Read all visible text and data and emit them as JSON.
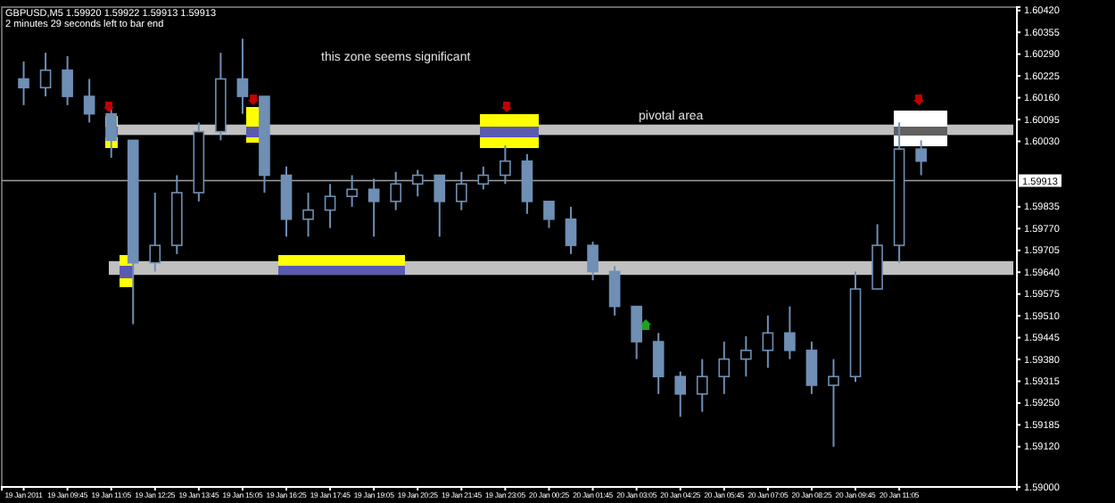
{
  "chart_data": {
    "type": "candlestick",
    "title": "GBPUSD,M5  1.59920 1.59922 1.59913 1.59913",
    "subtitle": "2 minutes 29 seconds left to bar end",
    "x": [
      "2011-01-19T08:25",
      "2011-01-19T09:05",
      "2011-01-19T09:45",
      "2011-01-19T10:25",
      "2011-01-19T11:05",
      "2011-01-19T11:45",
      "2011-01-19T12:25",
      "2011-01-19T13:05",
      "2011-01-19T13:45",
      "2011-01-19T14:25",
      "2011-01-19T15:05",
      "2011-01-19T15:45",
      "2011-01-19T16:25",
      "2011-01-19T17:05",
      "2011-01-19T17:45",
      "2011-01-19T18:25",
      "2011-01-19T19:05",
      "2011-01-19T19:45",
      "2011-01-19T20:25",
      "2011-01-19T21:05",
      "2011-01-19T21:45",
      "2011-01-19T22:25",
      "2011-01-19T23:05",
      "2011-01-19T23:45",
      "2011-01-20T00:25",
      "2011-01-20T01:05",
      "2011-01-20T01:45",
      "2011-01-20T02:25",
      "2011-01-20T03:05",
      "2011-01-20T03:45",
      "2011-01-20T04:25",
      "2011-01-20T05:05",
      "2011-01-20T05:45",
      "2011-01-20T06:25",
      "2011-01-20T07:05",
      "2011-01-20T07:45",
      "2011-01-20T08:25",
      "2011-01-20T09:05",
      "2011-01-20T09:45",
      "2011-01-20T10:25",
      "2011-01-20T11:05",
      "2011-01-20T11:45"
    ],
    "ohlc": [
      [
        1.60216,
        1.60268,
        1.60138,
        1.6019
      ],
      [
        1.6019,
        1.60294,
        1.60164,
        1.60242
      ],
      [
        1.60242,
        1.60284,
        1.60138,
        1.60164
      ],
      [
        1.60164,
        1.60216,
        1.60086,
        1.60112
      ],
      [
        1.60112,
        1.60138,
        1.59981,
        1.60033
      ],
      [
        1.60033,
        1.60033,
        1.59485,
        1.59668
      ],
      [
        1.59668,
        1.59877,
        1.59642,
        1.5972
      ],
      [
        1.5972,
        1.59929,
        1.59694,
        1.59877
      ],
      [
        1.59877,
        1.60086,
        1.59851,
        1.60059
      ],
      [
        1.60059,
        1.60294,
        1.60033,
        1.60216
      ],
      [
        1.60216,
        1.60336,
        1.60112,
        1.60164
      ],
      [
        1.60164,
        1.60164,
        1.59877,
        1.59929
      ],
      [
        1.59929,
        1.59955,
        1.59746,
        1.59798
      ],
      [
        1.59798,
        1.59877,
        1.59746,
        1.59825
      ],
      [
        1.59825,
        1.59903,
        1.59772,
        1.59866
      ],
      [
        1.59866,
        1.59929,
        1.59835,
        1.59887
      ],
      [
        1.59887,
        1.59919,
        1.59746,
        1.59851
      ],
      [
        1.59851,
        1.59939,
        1.59825,
        1.59903
      ],
      [
        1.59903,
        1.59945,
        1.59866,
        1.59929
      ],
      [
        1.59929,
        1.59929,
        1.59746,
        1.59851
      ],
      [
        1.59851,
        1.59939,
        1.59825,
        1.59903
      ],
      [
        1.59903,
        1.59955,
        1.59887,
        1.59929
      ],
      [
        1.59929,
        1.60018,
        1.59903,
        1.59971
      ],
      [
        1.59971,
        1.59992,
        1.59814,
        1.59851
      ],
      [
        1.59851,
        1.59851,
        1.59772,
        1.59798
      ],
      [
        1.59798,
        1.59835,
        1.59694,
        1.5972
      ],
      [
        1.5972,
        1.59731,
        1.59616,
        1.59642
      ],
      [
        1.59642,
        1.59658,
        1.59511,
        1.59538
      ],
      [
        1.59538,
        1.59538,
        1.59381,
        1.59433
      ],
      [
        1.59433,
        1.59459,
        1.59277,
        1.59329
      ],
      [
        1.59329,
        1.59344,
        1.59209,
        1.59277
      ],
      [
        1.59277,
        1.59381,
        1.59224,
        1.59329
      ],
      [
        1.59329,
        1.59433,
        1.59277,
        1.59381
      ],
      [
        1.59381,
        1.59449,
        1.59329,
        1.59407
      ],
      [
        1.59407,
        1.59511,
        1.59355,
        1.59459
      ],
      [
        1.59459,
        1.59538,
        1.59381,
        1.59407
      ],
      [
        1.59407,
        1.59433,
        1.59277,
        1.59303
      ],
      [
        1.59303,
        1.59381,
        1.5912,
        1.59329
      ],
      [
        1.59329,
        1.59642,
        1.59313,
        1.5959
      ],
      [
        1.5959,
        1.59783,
        1.5959,
        1.5972
      ],
      [
        1.5972,
        1.60086,
        1.59668,
        1.60007
      ],
      [
        1.60007,
        1.60033,
        1.59929,
        1.59971
      ]
    ],
    "color": "#6f8fb5",
    "xlim": [
      "2011-01-19T07:45",
      "2011-01-20T14:40"
    ],
    "xticks": [
      {
        "value": "2011-01-19T08:25",
        "label": "19 Jan 2011"
      },
      {
        "value": "2011-01-19T09:45",
        "label": "19 Jan 09:45"
      },
      {
        "value": "2011-01-19T11:05",
        "label": "19 Jan 11:05"
      },
      {
        "value": "2011-01-19T12:25",
        "label": "19 Jan 12:25"
      },
      {
        "value": "2011-01-19T13:45",
        "label": "19 Jan 13:45"
      },
      {
        "value": "2011-01-19T15:05",
        "label": "19 Jan 15:05"
      },
      {
        "value": "2011-01-19T16:25",
        "label": "19 Jan 16:25"
      },
      {
        "value": "2011-01-19T17:45",
        "label": "19 Jan 17:45"
      },
      {
        "value": "2011-01-19T19:05",
        "label": "19 Jan 19:05"
      },
      {
        "value": "2011-01-19T20:25",
        "label": "19 Jan 20:25"
      },
      {
        "value": "2011-01-19T21:45",
        "label": "19 Jan 21:45"
      },
      {
        "value": "2011-01-19T23:05",
        "label": "19 Jan 23:05"
      },
      {
        "value": "2011-01-20T00:25",
        "label": "20 Jan 00:25"
      },
      {
        "value": "2011-01-20T01:45",
        "label": "20 Jan 01:45"
      },
      {
        "value": "2011-01-20T03:05",
        "label": "20 Jan 03:05"
      },
      {
        "value": "2011-01-20T04:25",
        "label": "20 Jan 04:25"
      },
      {
        "value": "2011-01-20T05:45",
        "label": "20 Jan 05:45"
      },
      {
        "value": "2011-01-20T07:05",
        "label": "20 Jan 07:05"
      },
      {
        "value": "2011-01-20T08:25",
        "label": "20 Jan 08:25"
      },
      {
        "value": "2011-01-20T09:45",
        "label": "20 Jan 09:45"
      },
      {
        "value": "2011-01-20T11:05",
        "label": "20 Jan 11:05"
      }
    ],
    "ylim": [
      1.59,
      1.6043
    ],
    "yticks": [
      {
        "value": 1.6042,
        "label": "1.60420"
      },
      {
        "value": 1.60355,
        "label": "1.60355"
      },
      {
        "value": 1.6029,
        "label": "1.60290"
      },
      {
        "value": 1.60225,
        "label": "1.60225"
      },
      {
        "value": 1.6016,
        "label": "1.60160"
      },
      {
        "value": 1.60095,
        "label": "1.60095"
      },
      {
        "value": 1.6003,
        "label": "1.60030"
      },
      {
        "value": 1.59835,
        "label": "1.59835"
      },
      {
        "value": 1.5977,
        "label": "1.59770"
      },
      {
        "value": 1.59705,
        "label": "1.59705"
      },
      {
        "value": 1.5964,
        "label": "1.59640"
      },
      {
        "value": 1.59575,
        "label": "1.59575"
      },
      {
        "value": 1.5951,
        "label": "1.59510"
      },
      {
        "value": 1.59445,
        "label": "1.59445"
      },
      {
        "value": 1.5938,
        "label": "1.59380"
      },
      {
        "value": 1.59315,
        "label": "1.59315"
      },
      {
        "value": 1.5925,
        "label": "1.59250"
      },
      {
        "value": 1.59185,
        "label": "1.59185"
      },
      {
        "value": 1.5912,
        "label": "1.59120"
      },
      {
        "value": 1.59,
        "label": "1.59000"
      }
    ],
    "ref_lines": [
      {
        "axis": "y",
        "value": 1.59913,
        "label": "1.59913",
        "color": "#a0a0a0"
      }
    ],
    "bands": [
      {
        "axis": "y",
        "from": 1.60049,
        "to": 1.6008,
        "color": "#c0c0c0"
      },
      {
        "axis": "y",
        "from": 1.59632,
        "to": 1.59673,
        "color": "#c0c0c0"
      }
    ],
    "annotations": [
      "this zone seems significant",
      "pivotal area"
    ],
    "grid": false
  }
}
